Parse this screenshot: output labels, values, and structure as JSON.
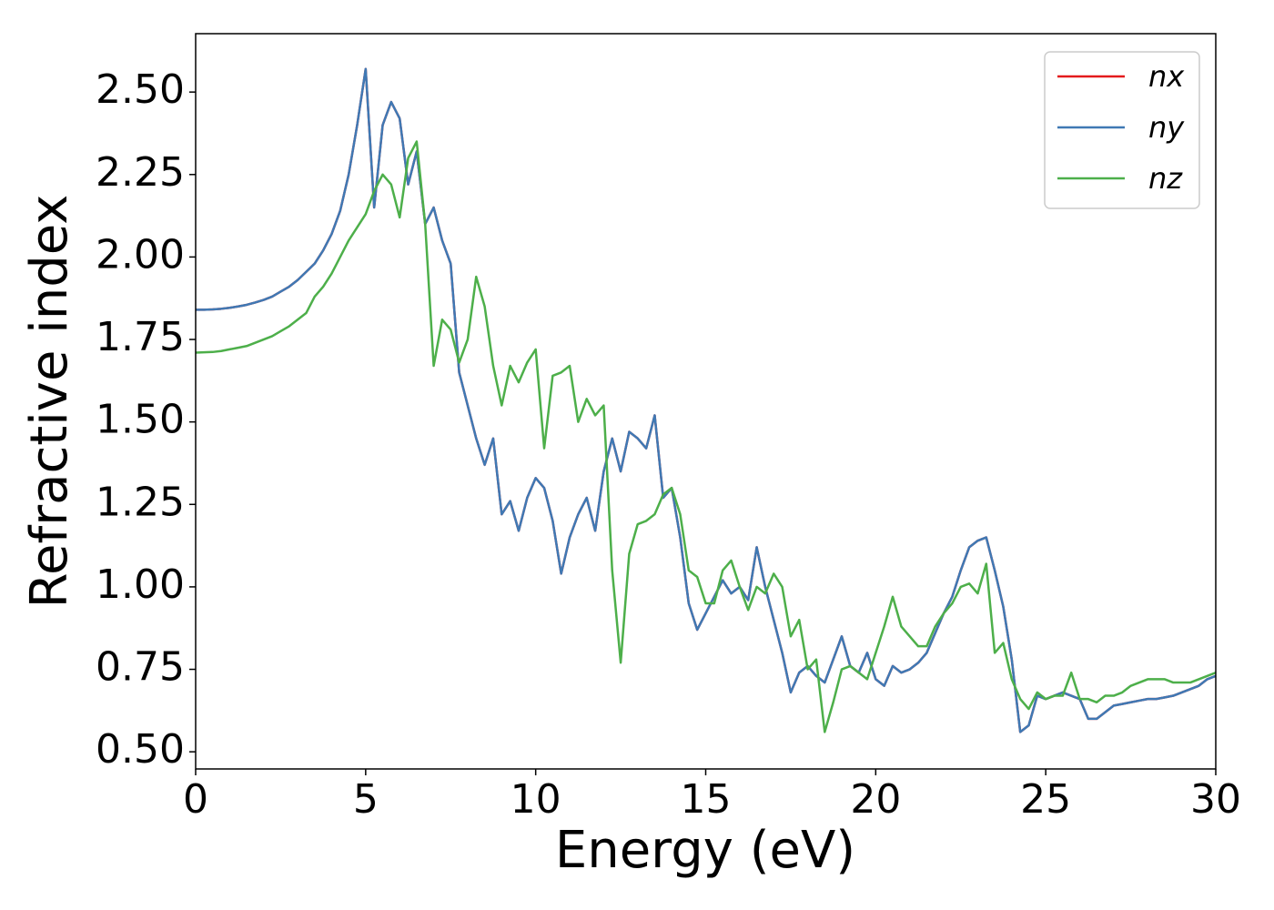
{
  "chart_data": {
    "type": "line",
    "xlabel": "Energy (eV)",
    "ylabel": "Refractive index",
    "x": [
      0,
      0.25,
      0.5,
      0.75,
      1,
      1.25,
      1.5,
      1.75,
      2,
      2.25,
      2.5,
      2.75,
      3,
      3.25,
      3.5,
      3.75,
      4,
      4.25,
      4.5,
      4.75,
      5,
      5.25,
      5.5,
      5.75,
      6,
      6.25,
      6.5,
      6.75,
      7,
      7.25,
      7.5,
      7.75,
      8,
      8.25,
      8.5,
      8.75,
      9,
      9.25,
      9.5,
      9.75,
      10,
      10.25,
      10.5,
      10.75,
      11,
      11.25,
      11.5,
      11.75,
      12,
      12.25,
      12.5,
      12.75,
      13,
      13.25,
      13.5,
      13.75,
      14,
      14.25,
      14.5,
      14.75,
      15,
      15.25,
      15.5,
      15.75,
      16,
      16.25,
      16.5,
      16.75,
      17,
      17.25,
      17.5,
      17.75,
      18,
      18.25,
      18.5,
      18.75,
      19,
      19.25,
      19.5,
      19.75,
      20,
      20.25,
      20.5,
      20.75,
      21,
      21.25,
      21.5,
      21.75,
      22,
      22.25,
      22.5,
      22.75,
      23,
      23.25,
      23.5,
      23.75,
      24,
      24.25,
      24.5,
      24.75,
      25,
      25.25,
      25.5,
      25.75,
      26,
      26.25,
      26.5,
      26.75,
      27,
      27.25,
      27.5,
      27.75,
      28,
      28.25,
      28.5,
      28.75,
      29,
      29.25,
      29.5,
      29.75,
      30
    ],
    "series": [
      {
        "name": "nx",
        "color": "#e41a1c",
        "values": [
          1.84,
          1.84,
          1.841,
          1.843,
          1.846,
          1.85,
          1.855,
          1.862,
          1.87,
          1.88,
          1.895,
          1.91,
          1.93,
          1.955,
          1.98,
          2.02,
          2.07,
          2.14,
          2.25,
          2.4,
          2.57,
          2.15,
          2.4,
          2.47,
          2.42,
          2.22,
          2.32,
          2.1,
          2.15,
          2.05,
          1.98,
          1.65,
          1.55,
          1.45,
          1.37,
          1.45,
          1.22,
          1.26,
          1.17,
          1.27,
          1.33,
          1.3,
          1.2,
          1.04,
          1.15,
          1.22,
          1.27,
          1.17,
          1.35,
          1.45,
          1.35,
          1.47,
          1.45,
          1.42,
          1.52,
          1.27,
          1.3,
          1.15,
          0.95,
          0.87,
          0.92,
          0.97,
          1.02,
          0.98,
          1.0,
          0.96,
          1.12,
          1.0,
          0.9,
          0.8,
          0.68,
          0.74,
          0.76,
          0.73,
          0.71,
          0.78,
          0.85,
          0.76,
          0.74,
          0.8,
          0.72,
          0.7,
          0.76,
          0.74,
          0.75,
          0.77,
          0.8,
          0.86,
          0.92,
          0.97,
          1.05,
          1.12,
          1.14,
          1.15,
          1.05,
          0.94,
          0.78,
          0.56,
          0.58,
          0.67,
          0.66,
          0.67,
          0.68,
          0.67,
          0.66,
          0.6,
          0.6,
          0.62,
          0.64,
          0.645,
          0.65,
          0.655,
          0.66,
          0.66,
          0.665,
          0.67,
          0.68,
          0.69,
          0.7,
          0.72,
          0.73
        ]
      },
      {
        "name": "ny",
        "color": "#3f79b4",
        "values": [
          1.84,
          1.84,
          1.841,
          1.843,
          1.846,
          1.85,
          1.855,
          1.862,
          1.87,
          1.88,
          1.895,
          1.91,
          1.93,
          1.955,
          1.98,
          2.02,
          2.07,
          2.14,
          2.25,
          2.4,
          2.57,
          2.15,
          2.4,
          2.47,
          2.42,
          2.22,
          2.32,
          2.1,
          2.15,
          2.05,
          1.98,
          1.65,
          1.55,
          1.45,
          1.37,
          1.45,
          1.22,
          1.26,
          1.17,
          1.27,
          1.33,
          1.3,
          1.2,
          1.04,
          1.15,
          1.22,
          1.27,
          1.17,
          1.35,
          1.45,
          1.35,
          1.47,
          1.45,
          1.42,
          1.52,
          1.27,
          1.3,
          1.15,
          0.95,
          0.87,
          0.92,
          0.97,
          1.02,
          0.98,
          1.0,
          0.96,
          1.12,
          1.0,
          0.9,
          0.8,
          0.68,
          0.74,
          0.76,
          0.73,
          0.71,
          0.78,
          0.85,
          0.76,
          0.74,
          0.8,
          0.72,
          0.7,
          0.76,
          0.74,
          0.75,
          0.77,
          0.8,
          0.86,
          0.92,
          0.97,
          1.05,
          1.12,
          1.14,
          1.15,
          1.05,
          0.94,
          0.78,
          0.56,
          0.58,
          0.67,
          0.66,
          0.67,
          0.68,
          0.67,
          0.66,
          0.6,
          0.6,
          0.62,
          0.64,
          0.645,
          0.65,
          0.655,
          0.66,
          0.66,
          0.665,
          0.67,
          0.68,
          0.69,
          0.7,
          0.72,
          0.73
        ]
      },
      {
        "name": "nz",
        "color": "#4daf4a",
        "values": [
          1.71,
          1.711,
          1.712,
          1.715,
          1.72,
          1.725,
          1.73,
          1.74,
          1.75,
          1.76,
          1.775,
          1.79,
          1.81,
          1.83,
          1.88,
          1.91,
          1.95,
          2.0,
          2.05,
          2.09,
          2.13,
          2.2,
          2.25,
          2.22,
          2.12,
          2.3,
          2.35,
          2.1,
          1.67,
          1.81,
          1.78,
          1.68,
          1.75,
          1.94,
          1.85,
          1.67,
          1.55,
          1.67,
          1.62,
          1.68,
          1.72,
          1.42,
          1.64,
          1.65,
          1.67,
          1.5,
          1.57,
          1.52,
          1.55,
          1.05,
          0.77,
          1.1,
          1.19,
          1.2,
          1.22,
          1.28,
          1.3,
          1.22,
          1.05,
          1.03,
          0.95,
          0.95,
          1.05,
          1.08,
          1.0,
          0.93,
          1.0,
          0.98,
          1.04,
          1.0,
          0.85,
          0.9,
          0.75,
          0.78,
          0.56,
          0.65,
          0.75,
          0.76,
          0.74,
          0.72,
          0.8,
          0.88,
          0.97,
          0.88,
          0.85,
          0.82,
          0.82,
          0.88,
          0.92,
          0.95,
          1.0,
          1.01,
          0.98,
          1.07,
          0.8,
          0.83,
          0.72,
          0.66,
          0.63,
          0.68,
          0.66,
          0.67,
          0.67,
          0.74,
          0.66,
          0.66,
          0.65,
          0.67,
          0.67,
          0.68,
          0.7,
          0.71,
          0.72,
          0.72,
          0.72,
          0.71,
          0.71,
          0.71,
          0.72,
          0.73,
          0.74
        ]
      }
    ],
    "xlim": [
      0,
      30
    ],
    "xticks": [
      0,
      5,
      10,
      15,
      20,
      25,
      30
    ],
    "ylim": [
      0.448,
      2.677
    ],
    "yticks": [
      {
        "value": 0.5,
        "label": "0.50"
      },
      0.75,
      {
        "value": 1.0,
        "label": "1.00"
      },
      1.25,
      {
        "value": 1.5,
        "label": "1.50"
      },
      1.75,
      {
        "value": 2.0,
        "label": "2.00"
      },
      2.25,
      {
        "value": 2.5,
        "label": "2.50"
      }
    ],
    "grid": false,
    "legend": "upper right"
  }
}
